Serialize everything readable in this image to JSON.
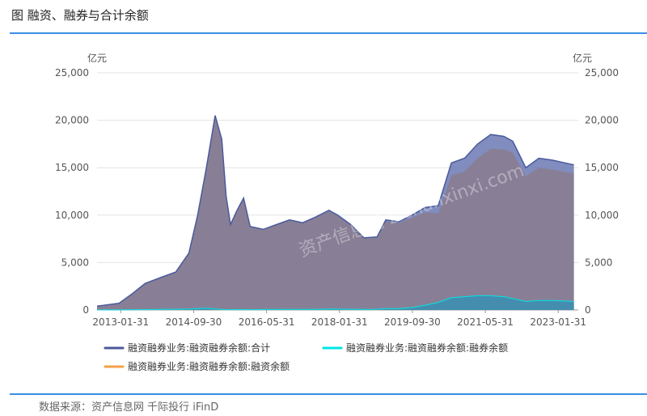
{
  "title": "图 融资、融券与合计余额",
  "source": "数据来源：资产信息网 千际投行 iFinD",
  "watermark": "资产信息网 zichanxinxi.com",
  "chart_data": {
    "type": "area",
    "y_unit_left": "亿元",
    "y_unit_right": "亿元",
    "ylim": [
      0,
      25000
    ],
    "yticks": [
      "0",
      "5,000",
      "10,000",
      "15,000",
      "20,000",
      "25,000"
    ],
    "xtick_labels": [
      "2013-01-31",
      "2014-09-30",
      "2016-05-31",
      "2018-01-31",
      "2019-09-30",
      "2021-05-31",
      "2023-01-31"
    ],
    "grid": true,
    "legend_position": "bottom",
    "x": [
      2012.5,
      2013.0,
      2013.3,
      2013.6,
      2014.0,
      2014.3,
      2014.6,
      2014.8,
      2015.0,
      2015.2,
      2015.35,
      2015.45,
      2015.55,
      2015.7,
      2015.85,
      2016.0,
      2016.3,
      2016.6,
      2016.9,
      2017.2,
      2017.5,
      2017.8,
      2018.0,
      2018.3,
      2018.6,
      2018.9,
      2019.1,
      2019.4,
      2019.7,
      2020.0,
      2020.3,
      2020.6,
      2020.9,
      2021.2,
      2021.5,
      2021.8,
      2022.0,
      2022.3,
      2022.6,
      2022.9,
      2023.2,
      2023.4
    ],
    "series": [
      {
        "name": "融资融券业务:融资融券余额:合计",
        "color": "#4a5a9a",
        "values": [
          400,
          700,
          1700,
          2800,
          3500,
          4000,
          6000,
          10000,
          15000,
          20500,
          18000,
          12000,
          9000,
          10500,
          11800,
          8800,
          8500,
          9000,
          9500,
          9200,
          9800,
          10500,
          10000,
          9000,
          7600,
          7700,
          9500,
          9300,
          10000,
          10800,
          11000,
          15500,
          16000,
          17500,
          18500,
          18300,
          17800,
          15000,
          16000,
          15800,
          15500,
          15300
        ]
      },
      {
        "name": "融资融券业务:融资融券余额:融券余额",
        "color": "#00e5e5",
        "values": [
          5,
          10,
          20,
          40,
          60,
          80,
          100,
          150,
          200,
          100,
          50,
          20,
          30,
          40,
          40,
          20,
          50,
          60,
          60,
          60,
          70,
          100,
          90,
          80,
          60,
          80,
          150,
          150,
          250,
          500,
          800,
          1300,
          1400,
          1500,
          1500,
          1400,
          1200,
          900,
          1000,
          1000,
          950,
          900
        ]
      },
      {
        "name": "融资融券业务:融资融券余额:融资余额",
        "color": "#f5a04a",
        "values": [
          395,
          690,
          1680,
          2760,
          3440,
          3920,
          5900,
          9850,
          14800,
          20400,
          17950,
          11980,
          8970,
          10460,
          11760,
          8780,
          8450,
          8940,
          9440,
          9140,
          9730,
          10400,
          9910,
          8920,
          7540,
          7620,
          9350,
          9150,
          9750,
          10300,
          10200,
          14200,
          14600,
          16000,
          17000,
          16900,
          16600,
          14100,
          15000,
          14800,
          14550,
          14400
        ]
      }
    ]
  }
}
